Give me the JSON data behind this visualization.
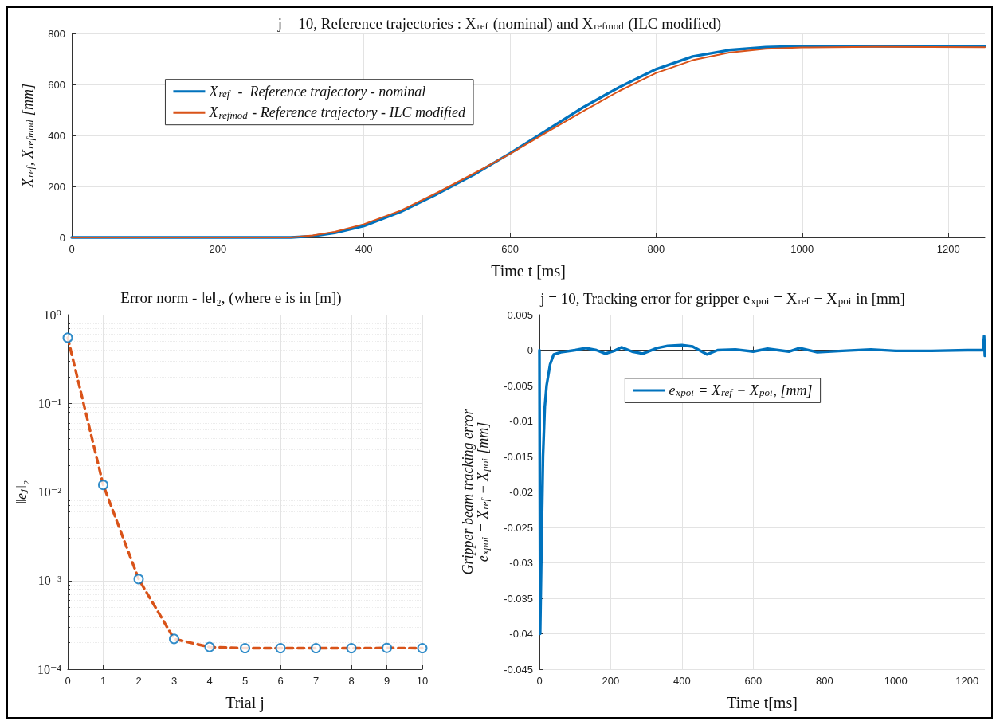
{
  "chart_data": [
    {
      "type": "line",
      "title": "j = 10, Reference trajectories : X$_{ref}$ (nominal) and X$_{refmod}$ (ILC modified)",
      "xlabel": "Time t [ms]",
      "ylabel": "X$_{ref}$, X$_{refmod}$ [mm]",
      "xlim": [
        0,
        1250
      ],
      "xticks": [
        0,
        200,
        400,
        600,
        800,
        1000,
        1200
      ],
      "ylim": [
        0,
        800
      ],
      "yticks": [
        0,
        200,
        400,
        600,
        800
      ],
      "grid": true,
      "legend": "left",
      "marker": "none",
      "line_style": "solid",
      "series": [
        {
          "name": "X$_{ref}$  -  Reference trajectory - nominal",
          "color": "#0072bd",
          "x": [
            0,
            100,
            200,
            300,
            330,
            360,
            400,
            450,
            500,
            550,
            600,
            650,
            700,
            750,
            800,
            850,
            900,
            950,
            1000,
            1100,
            1250
          ],
          "values": [
            0,
            0,
            0,
            0,
            5,
            18,
            45,
            100,
            170,
            245,
            330,
            420,
            510,
            590,
            660,
            710,
            735,
            746,
            750,
            750,
            750
          ]
        },
        {
          "name": "X$_{refmod}$ - Reference trajectory - ILC modified",
          "color": "#d95319",
          "x": [
            0,
            100,
            200,
            300,
            330,
            360,
            400,
            450,
            500,
            550,
            600,
            650,
            700,
            750,
            800,
            850,
            900,
            950,
            1000,
            1100,
            1250
          ],
          "values": [
            0,
            0,
            0,
            0,
            8,
            22,
            52,
            105,
            175,
            250,
            328,
            412,
            495,
            575,
            645,
            695,
            725,
            740,
            745,
            748,
            746
          ]
        }
      ]
    },
    {
      "type": "line",
      "title": "Error norm - ‖e‖₂, (where e is in [m])",
      "xlabel": "Trial j",
      "ylabel": "‖eⱼ‖₂",
      "xlim": [
        0,
        10
      ],
      "xticks": [
        0,
        1,
        2,
        3,
        4,
        5,
        6,
        7,
        8,
        9,
        10
      ],
      "ylim": [
        0.0001,
        1
      ],
      "yticks": [
        {
          "value": 0.0001,
          "label": "10⁻⁴"
        },
        {
          "value": 0.001,
          "label": "10⁻³"
        },
        {
          "value": 0.01,
          "label": "10⁻²"
        },
        {
          "value": 0.1,
          "label": "10⁻¹"
        },
        {
          "value": 1,
          "label": "10⁰"
        }
      ],
      "log": "y",
      "grid": true,
      "series": [
        {
          "color": "#d95319",
          "line_style": "dashed",
          "marker": "none",
          "x": [
            0,
            1,
            2,
            3,
            4,
            5,
            6,
            7,
            8,
            9,
            10
          ],
          "values": [
            0.55,
            0.012,
            0.00104,
            0.00022,
            0.000178,
            0.000173,
            0.000173,
            0.000173,
            0.000173,
            0.000174,
            0.000173
          ]
        },
        {
          "type": "scatter",
          "color": "#0072bd",
          "marker": "circle",
          "x": [
            0,
            1,
            2,
            3,
            4,
            5,
            6,
            7,
            8,
            9,
            10
          ],
          "values": [
            0.55,
            0.012,
            0.00104,
            0.00022,
            0.000178,
            0.000173,
            0.000173,
            0.000173,
            0.000173,
            0.000174,
            0.000173
          ]
        }
      ]
    },
    {
      "type": "line",
      "title": "j = 10, Tracking error for gripper e$_{xpoi}$ = X$_{ref}$ − X$_{poi}$ in [mm]",
      "xlabel": "Time t[ms]",
      "ylabel": "Gripper beam tracking error\ne$_{xpoi}$ = X$_{ref}$ − X$_{poi}$ [mm]",
      "xlim": [
        0,
        1250
      ],
      "xticks": [
        0,
        200,
        400,
        600,
        800,
        1000,
        1200
      ],
      "ylim": [
        -0.045,
        0.005
      ],
      "yticks": [
        -0.045,
        -0.04,
        -0.035,
        -0.03,
        -0.025,
        -0.02,
        -0.015,
        -0.01,
        -0.005,
        0,
        0.005
      ],
      "grid": true,
      "legend": "top",
      "marker": "none",
      "line_style": "solid",
      "series": [
        {
          "name": "e$_{xpoi}$ = X$_{ref}$ − X$_{poi}$, [mm]",
          "color": "#0072bd",
          "x": [
            0,
            2,
            5,
            10,
            15,
            20,
            30,
            40,
            60,
            100,
            130,
            160,
            185,
            210,
            230,
            260,
            290,
            330,
            360,
            400,
            430,
            470,
            500,
            550,
            600,
            640,
            700,
            730,
            780,
            850,
            930,
            1000,
            1100,
            1200,
            1245,
            1248,
            1250
          ],
          "values": [
            0,
            -0.04,
            -0.03,
            -0.015,
            -0.008,
            -0.005,
            -0.002,
            -0.0006,
            -0.0003,
            0,
            0.0003,
            0,
            -0.0005,
            -0.0001,
            0.0004,
            -0.0002,
            -0.0005,
            0.0003,
            0.0006,
            0.0007,
            0.0005,
            -0.0006,
            0,
            0.0001,
            -0.0002,
            0.0002,
            -0.0002,
            0.0003,
            -0.0003,
            -0.0001,
            0.0001,
            -0.0001,
            -0.0001,
            0,
            0,
            0.002,
            -0.0008
          ]
        }
      ]
    }
  ]
}
